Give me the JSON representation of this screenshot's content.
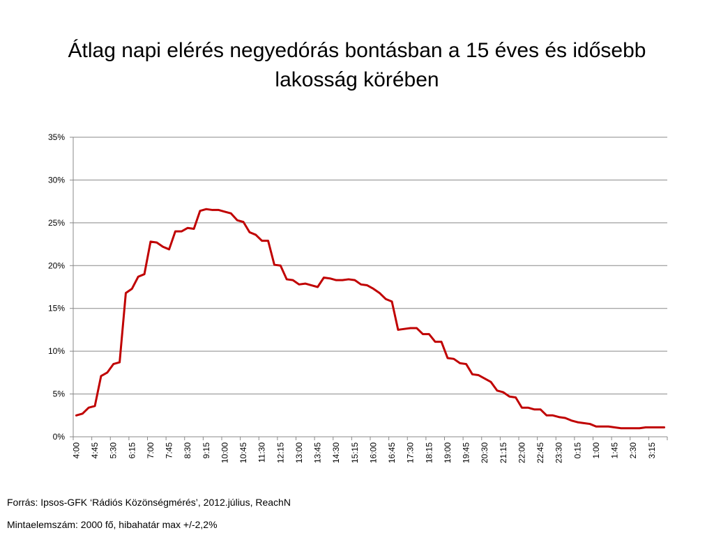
{
  "title_line1": "Átlag napi elérés negyedórás bontásban a 15 éves és idősebb",
  "title_line2": "lakosság körében",
  "source_line": "Forrás: Ipsos-GFK ‘Rádiós Közönségmérés’, 2012.július, ReachN",
  "sample_line": "Mintaelemszám: 2000 fő, hibahatár max +/-2,2%",
  "colors": {
    "line": "#c00000",
    "grid": "#888888",
    "axis": "#888888"
  },
  "chart_data": {
    "type": "line",
    "title": "Átlag napi elérés negyedórás bontásban a 15 éves és idősebb lakosság körében",
    "xlabel": "",
    "ylabel": "",
    "ylim": [
      0,
      35
    ],
    "yticks": [
      "0%",
      "5%",
      "10%",
      "15%",
      "20%",
      "25%",
      "30%",
      "35%"
    ],
    "grid": true,
    "legend": "none",
    "x": [
      "4:00",
      "4:15",
      "4:30",
      "4:45",
      "5:00",
      "5:15",
      "5:30",
      "5:45",
      "6:00",
      "6:15",
      "6:30",
      "6:45",
      "7:00",
      "7:15",
      "7:30",
      "7:45",
      "8:00",
      "8:15",
      "8:30",
      "8:45",
      "9:00",
      "9:15",
      "9:30",
      "9:45",
      "10:00",
      "10:15",
      "10:30",
      "10:45",
      "11:00",
      "11:15",
      "11:30",
      "11:45",
      "12:00",
      "12:15",
      "12:30",
      "12:45",
      "13:00",
      "13:15",
      "13:30",
      "13:45",
      "14:00",
      "14:15",
      "14:30",
      "14:45",
      "15:00",
      "15:15",
      "15:30",
      "15:45",
      "16:00",
      "16:15",
      "16:30",
      "16:45",
      "17:00",
      "17:15",
      "17:30",
      "17:45",
      "18:00",
      "18:15",
      "18:30",
      "18:45",
      "19:00",
      "19:15",
      "19:30",
      "19:45",
      "20:00",
      "20:15",
      "20:30",
      "20:45",
      "21:00",
      "21:15",
      "21:30",
      "21:45",
      "22:00",
      "22:15",
      "22:30",
      "22:45",
      "23:00",
      "23:15",
      "23:30",
      "23:45",
      "0:00",
      "0:15",
      "0:30",
      "0:45",
      "1:00",
      "1:15",
      "1:30",
      "1:45",
      "2:00",
      "2:15",
      "2:30",
      "2:45",
      "3:00",
      "3:15",
      "3:30",
      "3:45"
    ],
    "x_tick_labels": [
      "4:00",
      "4:45",
      "5:30",
      "6:15",
      "7:00",
      "7:45",
      "8:30",
      "9:15",
      "10:00",
      "10:45",
      "11:30",
      "12:15",
      "13:00",
      "13:45",
      "14:30",
      "15:15",
      "16:00",
      "16:45",
      "17:30",
      "18:15",
      "19:00",
      "19:45",
      "20:30",
      "21:15",
      "22:00",
      "22:45",
      "23:30",
      "0:15",
      "1:00",
      "1:45",
      "2:30",
      "3:15"
    ],
    "series": [
      {
        "values": [
          2.5,
          2.7,
          3.4,
          3.6,
          7.1,
          7.5,
          8.5,
          8.7,
          16.8,
          17.3,
          18.7,
          19.0,
          22.8,
          22.7,
          22.2,
          21.9,
          24.0,
          24.0,
          24.4,
          24.3,
          26.4,
          26.6,
          26.5,
          26.5,
          26.3,
          26.1,
          25.3,
          25.1,
          23.9,
          23.6,
          22.9,
          22.9,
          20.1,
          20.0,
          18.4,
          18.3,
          17.8,
          17.9,
          17.7,
          17.5,
          18.6,
          18.5,
          18.3,
          18.3,
          18.4,
          18.3,
          17.8,
          17.7,
          17.3,
          16.8,
          16.1,
          15.8,
          12.5,
          12.6,
          12.7,
          12.7,
          12.0,
          12.0,
          11.1,
          11.1,
          9.2,
          9.1,
          8.6,
          8.5,
          7.3,
          7.2,
          6.8,
          6.4,
          5.4,
          5.2,
          4.7,
          4.6,
          3.4,
          3.4,
          3.2,
          3.2,
          2.5,
          2.5,
          2.3,
          2.2,
          1.9,
          1.7,
          1.6,
          1.5,
          1.2,
          1.2,
          1.2,
          1.1,
          1.0,
          1.0,
          1.0,
          1.0,
          1.1,
          1.1,
          1.1,
          1.1
        ]
      }
    ]
  }
}
